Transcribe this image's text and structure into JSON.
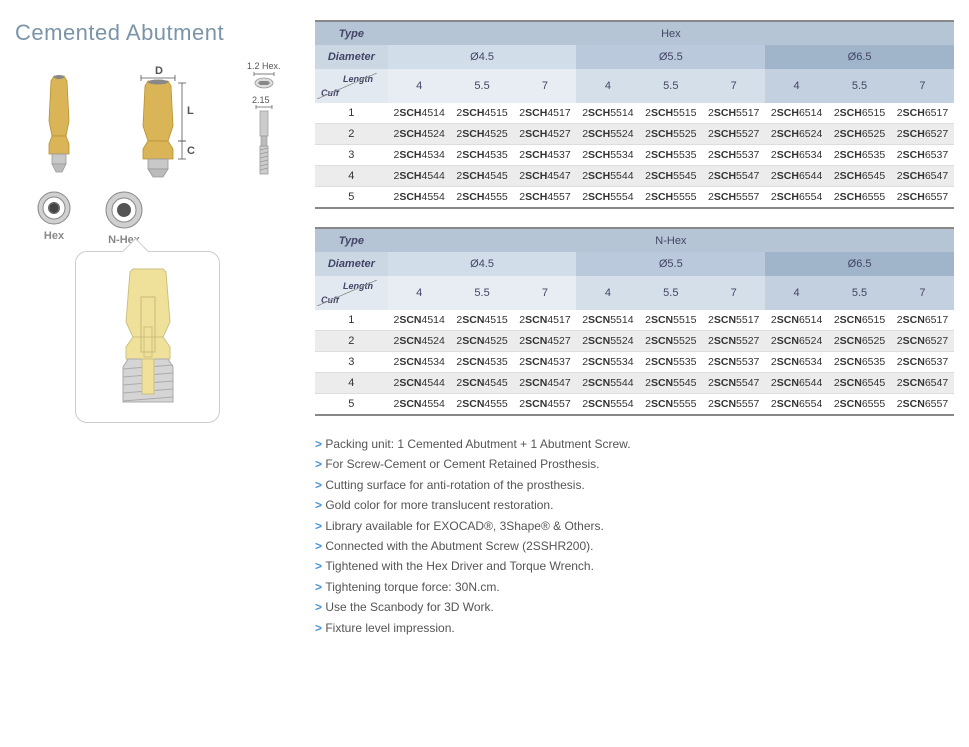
{
  "title": "Cemented Abutment",
  "left": {
    "dim_d": "D",
    "dim_l": "L",
    "dim_c": "C",
    "screw_hex": "1.2 Hex.",
    "screw_dia": "2.15",
    "hex_label": "Hex",
    "nhex_label": "N-Hex"
  },
  "tables": [
    {
      "type_label": "Type",
      "type_value": "Hex",
      "code_prefix": "SCH",
      "diameter_label": "Diameter",
      "diameters": [
        "Ø4.5",
        "Ø5.5",
        "Ø6.5"
      ],
      "diameter_codes": [
        "45",
        "55",
        "65"
      ],
      "cuff_label": "Cuff",
      "length_label": "Length",
      "lengths": [
        "4",
        "5.5",
        "7"
      ],
      "length_codes": [
        "4",
        "5",
        "7"
      ],
      "cuffs": [
        "1",
        "2",
        "3",
        "4",
        "5"
      ]
    },
    {
      "type_label": "Type",
      "type_value": "N-Hex",
      "code_prefix": "SCN",
      "diameter_label": "Diameter",
      "diameters": [
        "Ø4.5",
        "Ø5.5",
        "Ø6.5"
      ],
      "diameter_codes": [
        "45",
        "55",
        "65"
      ],
      "cuff_label": "Cuff",
      "length_label": "Length",
      "lengths": [
        "4",
        "5.5",
        "7"
      ],
      "length_codes": [
        "4",
        "5",
        "7"
      ],
      "cuffs": [
        "1",
        "2",
        "3",
        "4",
        "5"
      ]
    }
  ],
  "notes": [
    "Packing unit: 1 Cemented Abutment + 1 Abutment Screw.",
    "For Screw-Cement or Cement Retained Prosthesis.",
    "Cutting surface for anti-rotation of the prosthesis.",
    "Gold color for more translucent restoration.",
    "Library available for EXOCAD®, 3Shape® & Others.",
    "Connected with the Abutment Screw (2SSHR200).",
    "Tightened with the Hex Driver and Torque Wrench.",
    "Tightening torque force: 30N.cm.",
    "Use the Scanbody for 3D Work.",
    "Fixture level impression."
  ],
  "style": {
    "title_color": "#7b94a8",
    "header_bg1": "#b5c5d6",
    "header_bg2": "#cbd8e4",
    "header_bg3": "#e2e9f0",
    "row_even_bg": "#ececec",
    "bullet_color": "#4a90d9"
  }
}
